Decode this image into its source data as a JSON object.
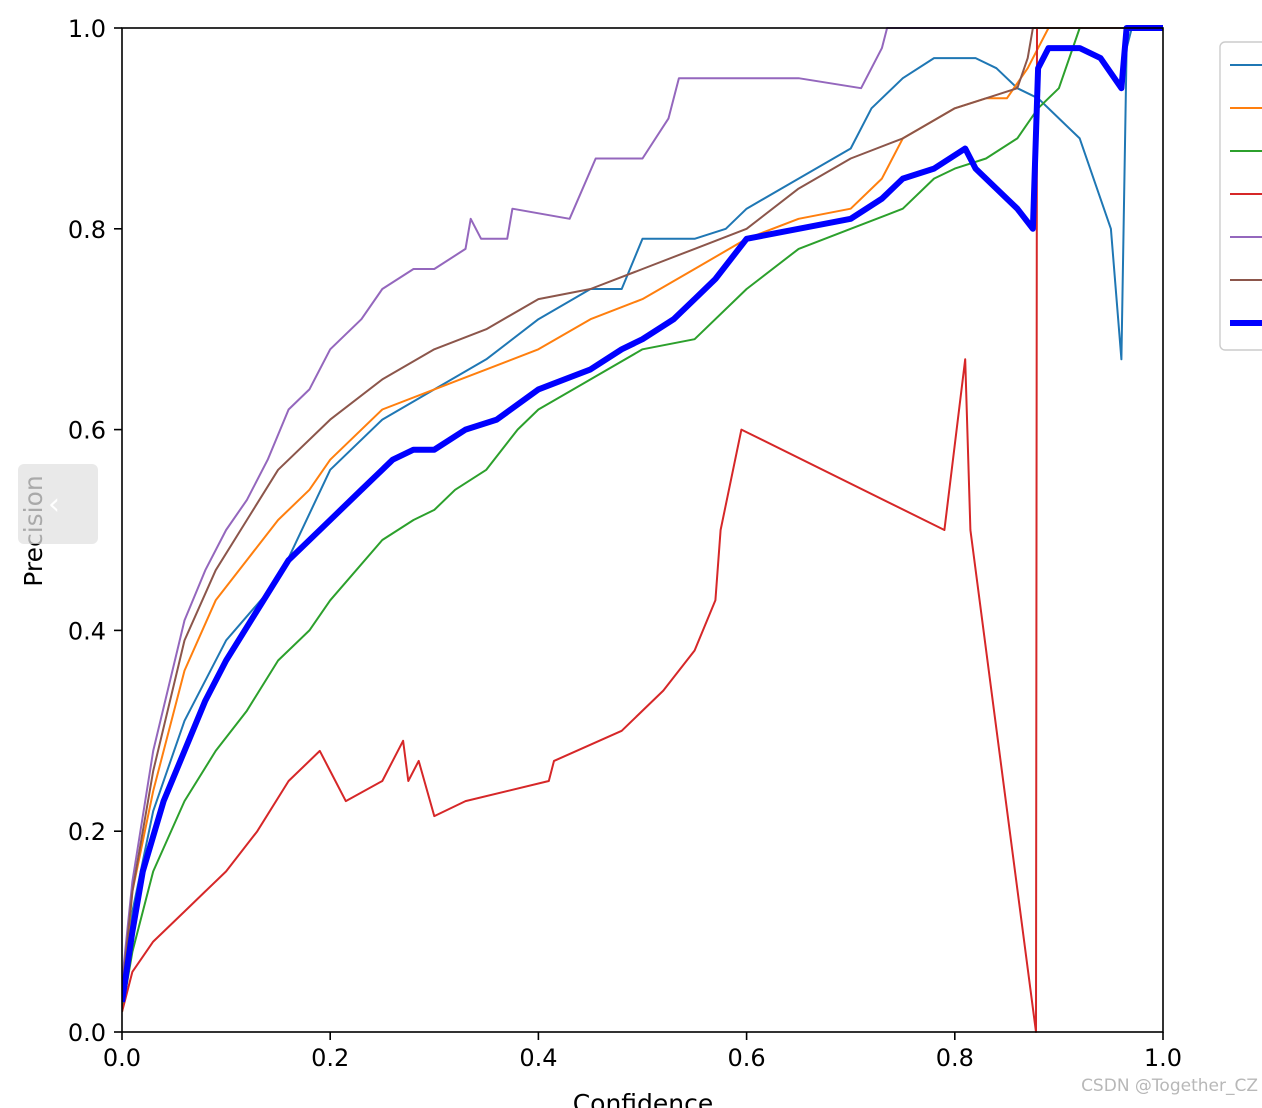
{
  "chart_data": {
    "type": "line",
    "title": "",
    "xlabel": "Confidence",
    "ylabel": "Precision",
    "xlim": [
      0.0,
      1.0
    ],
    "ylim": [
      0.0,
      1.0
    ],
    "xticks": [
      "0.0",
      "0.2",
      "0.4",
      "0.6",
      "0.8",
      "1.0"
    ],
    "yticks": [
      "0.0",
      "0.2",
      "0.4",
      "0.6",
      "0.8",
      "1.0"
    ],
    "grid": false,
    "legend": "top-right (labels cropped)",
    "series": [
      {
        "color": "#1f77b4",
        "width": 2,
        "points": [
          [
            0,
            0.03
          ],
          [
            0.01,
            0.12
          ],
          [
            0.03,
            0.22
          ],
          [
            0.06,
            0.31
          ],
          [
            0.1,
            0.39
          ],
          [
            0.15,
            0.45
          ],
          [
            0.2,
            0.56
          ],
          [
            0.25,
            0.61
          ],
          [
            0.3,
            0.64
          ],
          [
            0.35,
            0.67
          ],
          [
            0.4,
            0.71
          ],
          [
            0.45,
            0.74
          ],
          [
            0.48,
            0.74
          ],
          [
            0.5,
            0.79
          ],
          [
            0.55,
            0.79
          ],
          [
            0.58,
            0.8
          ],
          [
            0.6,
            0.82
          ],
          [
            0.65,
            0.85
          ],
          [
            0.7,
            0.88
          ],
          [
            0.72,
            0.92
          ],
          [
            0.75,
            0.95
          ],
          [
            0.78,
            0.97
          ],
          [
            0.82,
            0.97
          ],
          [
            0.84,
            0.96
          ],
          [
            0.86,
            0.94
          ],
          [
            0.88,
            0.93
          ],
          [
            0.9,
            0.91
          ],
          [
            0.92,
            0.89
          ],
          [
            0.95,
            0.8
          ],
          [
            0.96,
            0.67
          ],
          [
            0.965,
            0.98
          ],
          [
            0.97,
            1.0
          ],
          [
            1.0,
            1.0
          ]
        ]
      },
      {
        "color": "#ff7f0e",
        "width": 2,
        "points": [
          [
            0,
            0.03
          ],
          [
            0.01,
            0.14
          ],
          [
            0.03,
            0.24
          ],
          [
            0.06,
            0.36
          ],
          [
            0.09,
            0.43
          ],
          [
            0.12,
            0.47
          ],
          [
            0.15,
            0.51
          ],
          [
            0.18,
            0.54
          ],
          [
            0.2,
            0.57
          ],
          [
            0.25,
            0.62
          ],
          [
            0.3,
            0.64
          ],
          [
            0.35,
            0.66
          ],
          [
            0.4,
            0.68
          ],
          [
            0.45,
            0.71
          ],
          [
            0.5,
            0.73
          ],
          [
            0.55,
            0.76
          ],
          [
            0.6,
            0.79
          ],
          [
            0.65,
            0.81
          ],
          [
            0.7,
            0.82
          ],
          [
            0.73,
            0.85
          ],
          [
            0.75,
            0.89
          ],
          [
            0.8,
            0.92
          ],
          [
            0.83,
            0.93
          ],
          [
            0.85,
            0.93
          ],
          [
            0.87,
            0.96
          ],
          [
            0.88,
            0.98
          ],
          [
            0.89,
            1.0
          ],
          [
            1.0,
            1.0
          ]
        ]
      },
      {
        "color": "#2ca02c",
        "width": 2,
        "points": [
          [
            0,
            0.02
          ],
          [
            0.01,
            0.08
          ],
          [
            0.03,
            0.16
          ],
          [
            0.06,
            0.23
          ],
          [
            0.09,
            0.28
          ],
          [
            0.12,
            0.32
          ],
          [
            0.15,
            0.37
          ],
          [
            0.18,
            0.4
          ],
          [
            0.2,
            0.43
          ],
          [
            0.25,
            0.49
          ],
          [
            0.28,
            0.51
          ],
          [
            0.3,
            0.52
          ],
          [
            0.32,
            0.54
          ],
          [
            0.35,
            0.56
          ],
          [
            0.38,
            0.6
          ],
          [
            0.4,
            0.62
          ],
          [
            0.45,
            0.65
          ],
          [
            0.5,
            0.68
          ],
          [
            0.55,
            0.69
          ],
          [
            0.6,
            0.74
          ],
          [
            0.65,
            0.78
          ],
          [
            0.7,
            0.8
          ],
          [
            0.75,
            0.82
          ],
          [
            0.78,
            0.85
          ],
          [
            0.8,
            0.86
          ],
          [
            0.83,
            0.87
          ],
          [
            0.86,
            0.89
          ],
          [
            0.88,
            0.92
          ],
          [
            0.9,
            0.94
          ],
          [
            0.92,
            1.0
          ],
          [
            1.0,
            1.0
          ]
        ]
      },
      {
        "color": "#d62728",
        "width": 2,
        "points": [
          [
            0,
            0.02
          ],
          [
            0.01,
            0.06
          ],
          [
            0.03,
            0.09
          ],
          [
            0.06,
            0.12
          ],
          [
            0.08,
            0.14
          ],
          [
            0.1,
            0.16
          ],
          [
            0.13,
            0.2
          ],
          [
            0.16,
            0.25
          ],
          [
            0.19,
            0.28
          ],
          [
            0.2,
            0.26
          ],
          [
            0.215,
            0.23
          ],
          [
            0.25,
            0.25
          ],
          [
            0.27,
            0.29
          ],
          [
            0.275,
            0.25
          ],
          [
            0.285,
            0.27
          ],
          [
            0.3,
            0.215
          ],
          [
            0.33,
            0.23
          ],
          [
            0.41,
            0.25
          ],
          [
            0.415,
            0.27
          ],
          [
            0.48,
            0.3
          ],
          [
            0.52,
            0.34
          ],
          [
            0.55,
            0.38
          ],
          [
            0.57,
            0.43
          ],
          [
            0.575,
            0.5
          ],
          [
            0.595,
            0.6
          ],
          [
            0.79,
            0.5
          ],
          [
            0.81,
            0.67
          ],
          [
            0.815,
            0.5
          ],
          [
            0.878,
            0.0
          ],
          [
            0.879,
            1.0
          ],
          [
            1.0,
            1.0
          ]
        ]
      },
      {
        "color": "#9467bd",
        "width": 2,
        "points": [
          [
            0,
            0.05
          ],
          [
            0.01,
            0.15
          ],
          [
            0.03,
            0.28
          ],
          [
            0.06,
            0.41
          ],
          [
            0.08,
            0.46
          ],
          [
            0.1,
            0.5
          ],
          [
            0.12,
            0.53
          ],
          [
            0.14,
            0.57
          ],
          [
            0.16,
            0.62
          ],
          [
            0.18,
            0.64
          ],
          [
            0.2,
            0.68
          ],
          [
            0.23,
            0.71
          ],
          [
            0.25,
            0.74
          ],
          [
            0.28,
            0.76
          ],
          [
            0.3,
            0.76
          ],
          [
            0.33,
            0.78
          ],
          [
            0.335,
            0.81
          ],
          [
            0.345,
            0.79
          ],
          [
            0.37,
            0.79
          ],
          [
            0.375,
            0.82
          ],
          [
            0.43,
            0.81
          ],
          [
            0.455,
            0.87
          ],
          [
            0.5,
            0.87
          ],
          [
            0.525,
            0.91
          ],
          [
            0.535,
            0.95
          ],
          [
            0.6,
            0.95
          ],
          [
            0.65,
            0.95
          ],
          [
            0.71,
            0.94
          ],
          [
            0.73,
            0.98
          ],
          [
            0.735,
            1.0
          ],
          [
            1.0,
            1.0
          ]
        ]
      },
      {
        "color": "#8c564b",
        "width": 2,
        "points": [
          [
            0,
            0.04
          ],
          [
            0.01,
            0.14
          ],
          [
            0.03,
            0.26
          ],
          [
            0.06,
            0.39
          ],
          [
            0.09,
            0.46
          ],
          [
            0.12,
            0.51
          ],
          [
            0.15,
            0.56
          ],
          [
            0.2,
            0.61
          ],
          [
            0.25,
            0.65
          ],
          [
            0.3,
            0.68
          ],
          [
            0.35,
            0.7
          ],
          [
            0.4,
            0.73
          ],
          [
            0.45,
            0.74
          ],
          [
            0.5,
            0.76
          ],
          [
            0.55,
            0.78
          ],
          [
            0.6,
            0.8
          ],
          [
            0.65,
            0.84
          ],
          [
            0.7,
            0.87
          ],
          [
            0.75,
            0.89
          ],
          [
            0.8,
            0.92
          ],
          [
            0.83,
            0.93
          ],
          [
            0.86,
            0.94
          ],
          [
            0.87,
            0.97
          ],
          [
            0.875,
            1.0
          ],
          [
            1.0,
            1.0
          ]
        ]
      },
      {
        "color": "#0000ff",
        "width": 6,
        "points": [
          [
            0,
            0.03
          ],
          [
            0.01,
            0.1
          ],
          [
            0.02,
            0.16
          ],
          [
            0.04,
            0.23
          ],
          [
            0.06,
            0.28
          ],
          [
            0.08,
            0.33
          ],
          [
            0.1,
            0.37
          ],
          [
            0.13,
            0.42
          ],
          [
            0.16,
            0.47
          ],
          [
            0.2,
            0.51
          ],
          [
            0.23,
            0.54
          ],
          [
            0.26,
            0.57
          ],
          [
            0.28,
            0.58
          ],
          [
            0.3,
            0.58
          ],
          [
            0.33,
            0.6
          ],
          [
            0.36,
            0.61
          ],
          [
            0.4,
            0.64
          ],
          [
            0.45,
            0.66
          ],
          [
            0.48,
            0.68
          ],
          [
            0.5,
            0.69
          ],
          [
            0.53,
            0.71
          ],
          [
            0.55,
            0.73
          ],
          [
            0.57,
            0.75
          ],
          [
            0.6,
            0.79
          ],
          [
            0.65,
            0.8
          ],
          [
            0.7,
            0.81
          ],
          [
            0.73,
            0.83
          ],
          [
            0.75,
            0.85
          ],
          [
            0.78,
            0.86
          ],
          [
            0.81,
            0.88
          ],
          [
            0.82,
            0.86
          ],
          [
            0.84,
            0.84
          ],
          [
            0.86,
            0.82
          ],
          [
            0.875,
            0.8
          ],
          [
            0.88,
            0.96
          ],
          [
            0.89,
            0.98
          ],
          [
            0.9,
            0.98
          ],
          [
            0.92,
            0.98
          ],
          [
            0.94,
            0.97
          ],
          [
            0.96,
            0.94
          ],
          [
            0.965,
            1.0
          ],
          [
            1.0,
            1.0
          ]
        ]
      }
    ]
  },
  "watermark": "CSDN @Together_CZ",
  "nav": {
    "prev_icon": "‹"
  }
}
